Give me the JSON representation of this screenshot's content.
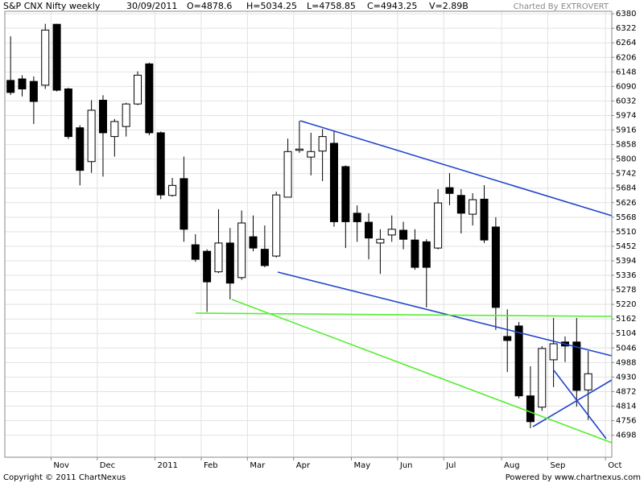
{
  "chart_data": {
    "type": "candlestick",
    "title": "S&P CNX Nifty weekly",
    "info": [
      "30/09/2011",
      "O=4878.6",
      "H=5034.25",
      "L=4758.85",
      "C=4943.25",
      "V=2.89B"
    ],
    "credit": "Charted By EXTROVERT",
    "footer_left": "Copyright © 2011 ChartNexus",
    "footer_right": "Powered by www.chartnexus.com",
    "categories": [
      null,
      null,
      null,
      null,
      "Nov",
      null,
      null,
      null,
      "Dec",
      null,
      null,
      null,
      null,
      "2011",
      null,
      null,
      null,
      "Feb",
      null,
      null,
      null,
      "Mar",
      null,
      null,
      null,
      "Apr",
      null,
      null,
      null,
      null,
      "May",
      null,
      null,
      null,
      "Jun",
      null,
      null,
      null,
      "Jul",
      null,
      null,
      null,
      null,
      "Aug",
      null,
      null,
      null,
      "Sep",
      null,
      null,
      null,
      null,
      "Oct"
    ],
    "open": [
      6114,
      6120,
      6110,
      6095,
      6338,
      6080,
      5925,
      5790,
      6035,
      5890,
      5930,
      6020,
      6180,
      5905,
      5655,
      5722,
      5458,
      5432,
      5350,
      5465,
      5327,
      5490,
      5440,
      5413,
      5648,
      5835,
      5808,
      5832,
      5863,
      5770,
      5584,
      5548,
      5465,
      5497,
      5516,
      5477,
      5470,
      5445,
      5686,
      5655,
      5580,
      5640,
      5529,
      5092,
      5134,
      4855,
      4810,
      4999,
      5070,
      5070,
      4878.6,
      null,
      null
    ],
    "high": [
      6290,
      6135,
      6130,
      6340,
      6340,
      6085,
      5935,
      6035,
      6055,
      5960,
      6025,
      6150,
      6185,
      5910,
      5725,
      5810,
      5500,
      5440,
      5600,
      5525,
      5595,
      5575,
      5535,
      5670,
      5882,
      5953,
      5905,
      5920,
      5910,
      5775,
      5615,
      5584,
      5520,
      5575,
      5550,
      5520,
      5480,
      5680,
      5744,
      5680,
      5664,
      5696,
      5568,
      5200,
      5150,
      4973,
      5053,
      5166,
      5092,
      5166,
      5034.25,
      null,
      null
    ],
    "low": [
      6056,
      6050,
      5940,
      6080,
      6070,
      5880,
      5695,
      5745,
      5730,
      5810,
      5890,
      6015,
      5895,
      5640,
      5650,
      5470,
      5390,
      5190,
      5345,
      5240,
      5318,
      5432,
      5368,
      5407,
      5648,
      5825,
      5735,
      5712,
      5530,
      5445,
      5470,
      5400,
      5342,
      5470,
      5440,
      5358,
      5208,
      5440,
      5616,
      5503,
      5535,
      5465,
      5118,
      4950,
      4845,
      4726,
      4795,
      4890,
      4990,
      4812,
      4758.85,
      null,
      null
    ],
    "close": [
      6066,
      6080,
      6030,
      6315,
      6075,
      5890,
      5755,
      5995,
      5905,
      5950,
      6020,
      6135,
      5905,
      5657,
      5695,
      5520,
      5400,
      5310,
      5465,
      5305,
      5545,
      5445,
      5375,
      5657,
      5830,
      5840,
      5830,
      5890,
      5550,
      5550,
      5550,
      5485,
      5480,
      5520,
      5480,
      5368,
      5368,
      5625,
      5663,
      5584,
      5638,
      5477,
      5208,
      5076,
      4855,
      4752,
      5044,
      5063,
      5054,
      4877,
      4943.25,
      null,
      null
    ],
    "up_color": "#ffffff",
    "down_color": "#000000",
    "wick_color": "#000000",
    "ylim": [
      4610,
      6390
    ],
    "yticks": [
      4698,
      4756,
      4814,
      4872,
      4930,
      4988,
      5046,
      5104,
      5162,
      5220,
      5278,
      5336,
      5394,
      5452,
      5510,
      5568,
      5626,
      5684,
      5742,
      5800,
      5858,
      5916,
      5974,
      6032,
      6090,
      6148,
      6206,
      6264,
      6322,
      6380
    ],
    "grid": true
  }
}
